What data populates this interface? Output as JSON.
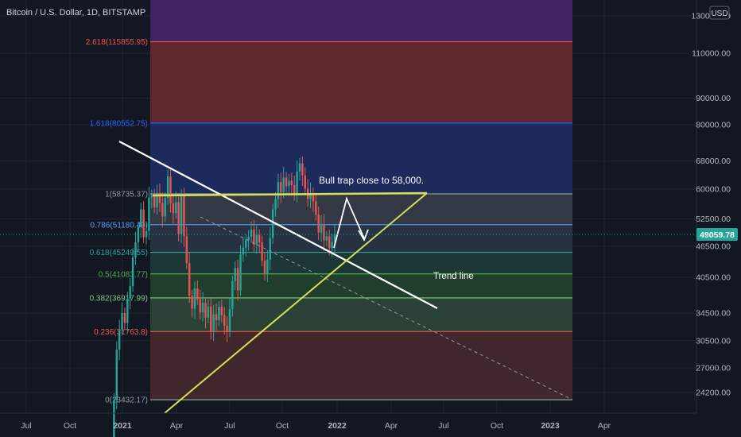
{
  "header": {
    "symbol_title": "Bitcoin / U.S. Dollar, 1D, BITSTAMP",
    "currency_badge": "USD"
  },
  "colors": {
    "background": "#131722",
    "grid": "#1f2432",
    "axis_text": "#b2b5be",
    "price_tag": "#26a69a",
    "candle_up": "#26a69a",
    "candle_down": "#ef5350",
    "trend_white": "#ffffff",
    "trend_yellow": "#d4e157",
    "fib_band_top": "#4a2670",
    "fib_band_2618": "#6b2a2f",
    "fib_band_1618": "#1f2f66",
    "fib_band_1": "#3a3f4a",
    "fib_band_0786": "#2a3646",
    "fib_band_0618": "#1e3d3a",
    "fib_band_05": "#25452f",
    "fib_band_0382": "#2f4a3a",
    "fib_band_0236": "#4a2a2e",
    "fib_band_0": "#4a2628"
  },
  "annotations": {
    "bull_trap": "Bull trap close to 58,000.",
    "trend_line": "Trend line"
  },
  "chart_data": {
    "type": "candlestick",
    "title": "Bitcoin / U.S. Dollar, 1D, BITSTAMP",
    "current_price": "49059.78",
    "price_axis_labels": [
      "130000.00",
      "110000.00",
      "90000.00",
      "80000.00",
      "68000.00",
      "60000.00",
      "52500.00",
      "46500.00",
      "40500.00",
      "34500.00",
      "30500.00",
      "27000.00",
      "24200.00"
    ],
    "price_axis_values": [
      130000,
      110000,
      90000,
      80000,
      68000,
      60000,
      52500,
      46500,
      40500,
      34500,
      30500,
      27000,
      24200
    ],
    "time_axis_labels": [
      "Jul",
      "Oct",
      "2021",
      "Apr",
      "Jul",
      "Oct",
      "2022",
      "Apr",
      "Jul",
      "Oct",
      "2023",
      "Apr"
    ],
    "time_axis_bold": [
      false,
      false,
      true,
      false,
      false,
      false,
      true,
      false,
      false,
      false,
      true,
      false
    ],
    "fib_levels": [
      {
        "label": "2.618(115855.95)",
        "value": 115855.95,
        "color": "#ef5350"
      },
      {
        "label": "1.618(80552.75)",
        "value": 80552.75,
        "color": "#2962ff"
      },
      {
        "label": "1(58735.37)",
        "value": 58735.37,
        "color": "#9598a1"
      },
      {
        "label": "0.786(51180.49)",
        "value": 51180.49,
        "color": "#5b9cf6"
      },
      {
        "label": "0.618(45249.55)",
        "value": 45249.55,
        "color": "#26a69a"
      },
      {
        "label": "0.5(41083.77)",
        "value": 41083.77,
        "color": "#4caf50"
      },
      {
        "label": "0.382(36917.99)",
        "value": 36917.99,
        "color": "#81c784"
      },
      {
        "label": "0.236(31763.8)",
        "value": 31763.8,
        "color": "#ef5350"
      },
      {
        "label": "0(23432.17)",
        "value": 23432.17,
        "color": "#9598a1"
      }
    ],
    "series_close": [
      19200,
      23400,
      29300,
      32100,
      34500,
      33000,
      36800,
      38900,
      44200,
      47300,
      50600,
      54800,
      48400,
      49800,
      57800,
      58300,
      55300,
      59000,
      56400,
      53100,
      57700,
      63500,
      56300,
      53900,
      56600,
      49100,
      58200,
      48600,
      43100,
      37300,
      35200,
      38500,
      36700,
      34600,
      36100,
      33800,
      35500,
      31700,
      34300,
      33400,
      35500,
      34200,
      32600,
      31800,
      35100,
      39800,
      42200,
      38200,
      44800,
      46200,
      47800,
      48500,
      50100,
      46800,
      48900,
      47300,
      43600,
      41200,
      43800,
      48200,
      54800,
      57400,
      61900,
      59100,
      63200,
      60800,
      62300,
      61100,
      58400,
      64900,
      67300,
      63800,
      60100,
      57400,
      58900,
      56800,
      53500,
      49400,
      51200,
      47700,
      48600,
      46100,
      47400,
      49059.78
    ]
  }
}
